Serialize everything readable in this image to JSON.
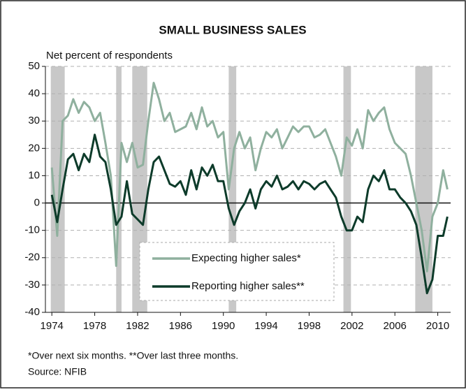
{
  "chart_data": {
    "type": "line",
    "title": "SMALL BUSINESS SALES",
    "y_label": "Net percent of respondents",
    "footnote": "*Over next six months. **Over last three months.",
    "source": "Source: NFIB",
    "legend": "lower center",
    "grid": true,
    "xlim": [
      1973.4,
      2011.2
    ],
    "ylim": [
      -40,
      50
    ],
    "xticks": [
      1974,
      1978,
      1982,
      1986,
      1990,
      1994,
      1998,
      2002,
      2006,
      2010
    ],
    "yticks": [
      -40,
      -30,
      -20,
      -10,
      0,
      10,
      20,
      30,
      40,
      50
    ],
    "recessions": [
      [
        1973.9,
        1975.2
      ],
      [
        1980.0,
        1980.5
      ],
      [
        1981.5,
        1982.9
      ],
      [
        1990.5,
        1991.2
      ],
      [
        2001.2,
        2001.9
      ],
      [
        2007.9,
        2009.5
      ]
    ],
    "recession_color": "#c8c8c8",
    "x": [
      1974.0,
      1974.5,
      1975.0,
      1975.5,
      1976.0,
      1976.5,
      1977.0,
      1977.5,
      1978.0,
      1978.5,
      1979.0,
      1979.5,
      1980.0,
      1980.5,
      1981.0,
      1981.5,
      1982.0,
      1982.5,
      1983.0,
      1983.5,
      1984.0,
      1984.5,
      1985.0,
      1985.5,
      1986.0,
      1986.5,
      1987.0,
      1987.5,
      1988.0,
      1988.5,
      1989.0,
      1989.5,
      1990.0,
      1990.5,
      1991.0,
      1991.5,
      1992.0,
      1992.5,
      1993.0,
      1993.5,
      1994.0,
      1994.5,
      1995.0,
      1995.5,
      1996.0,
      1996.5,
      1997.0,
      1997.5,
      1998.0,
      1998.5,
      1999.0,
      1999.5,
      2000.0,
      2000.5,
      2001.0,
      2001.5,
      2002.0,
      2002.5,
      2003.0,
      2003.5,
      2004.0,
      2004.5,
      2005.0,
      2005.5,
      2006.0,
      2006.5,
      2007.0,
      2007.5,
      2008.0,
      2008.5,
      2009.0,
      2009.5,
      2010.0,
      2010.5,
      2010.9
    ],
    "series": [
      {
        "name": "Expecting higher sales*",
        "color": "#8fb09e",
        "values": [
          13,
          -12,
          30,
          32,
          38,
          33,
          37,
          35,
          30,
          33,
          22,
          10,
          -23,
          22,
          15,
          22,
          13,
          14,
          30,
          44,
          38,
          30,
          33,
          26,
          27,
          28,
          33,
          27,
          35,
          28,
          30,
          24,
          26,
          5,
          20,
          26,
          20,
          24,
          12,
          20,
          26,
          24,
          27,
          20,
          24,
          28,
          26,
          28,
          28,
          24,
          25,
          27,
          22,
          17,
          10,
          24,
          21,
          27,
          20,
          34,
          30,
          33,
          35,
          27,
          22,
          20,
          18,
          10,
          0,
          -10,
          -25,
          -5,
          0,
          12,
          5
        ]
      },
      {
        "name": "Reporting higher sales**",
        "color": "#0d3b2a",
        "values": [
          3,
          -7,
          5,
          16,
          18,
          12,
          18,
          15,
          25,
          17,
          15,
          5,
          -8,
          -5,
          8,
          -4,
          -6,
          -8,
          5,
          15,
          17,
          12,
          7,
          6,
          8,
          3,
          12,
          5,
          13,
          10,
          14,
          8,
          8,
          -2,
          -8,
          -3,
          0,
          5,
          -2,
          5,
          8,
          6,
          10,
          5,
          6,
          8,
          5,
          8,
          7,
          5,
          7,
          8,
          5,
          2,
          -5,
          -10,
          -10,
          -5,
          -7,
          5,
          10,
          8,
          12,
          5,
          5,
          2,
          0,
          -3,
          -8,
          -20,
          -33,
          -28,
          -12,
          -12,
          -5
        ]
      }
    ]
  }
}
